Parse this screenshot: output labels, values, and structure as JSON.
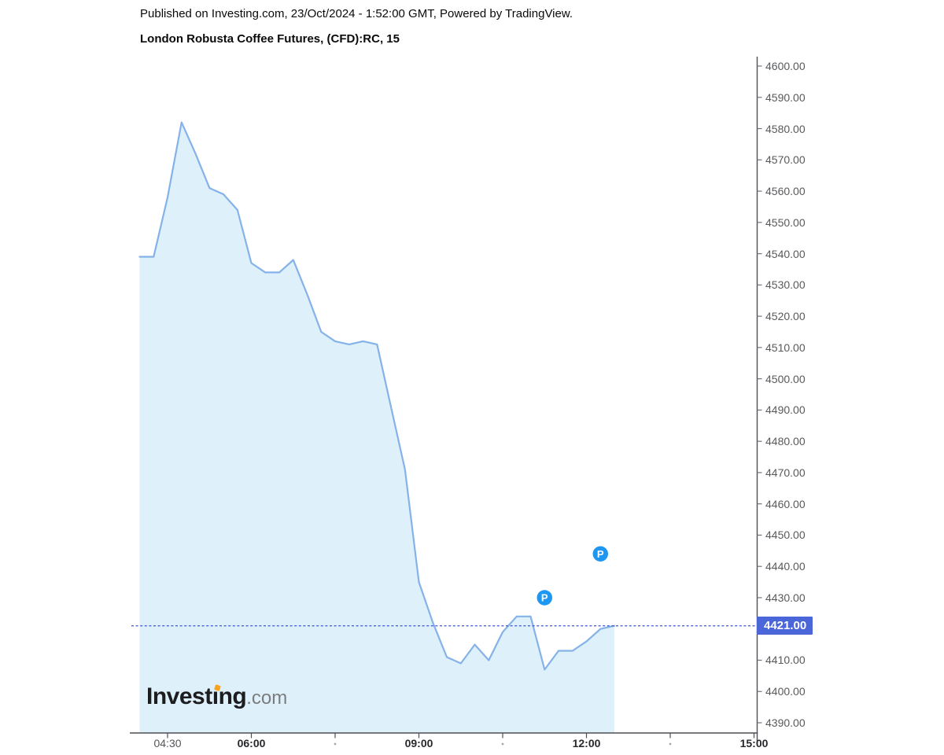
{
  "header": {
    "published_line": "Published on Investing.com, 23/Oct/2024 - 1:52:00 GMT, Powered by TradingView.",
    "title": "London Robusta Coffee Futures, (CFD):RC, 15"
  },
  "logo": {
    "prefix": "Invest",
    "dotless_i": "ı",
    "rest": "ng",
    "suffix": ".com"
  },
  "price_badge": {
    "value": "4421.00"
  },
  "colors": {
    "line": "#85b2e8",
    "area_fill": "#def0fa",
    "price_line": "#3d56d6",
    "badge_bg": "#4a66d8",
    "badge_text": "#ffffff",
    "marker": "#1e97f2",
    "marker_text": "#ffffff",
    "logo_dot": "#f9a21d",
    "axis": "#4c4f54",
    "tick": "#6f7276",
    "minor_dot": "#a8a8a8"
  },
  "chart_data": {
    "type": "area",
    "title": "London Robusta Coffee Futures, (CFD):RC, 15",
    "interval_minutes": 15,
    "x": [
      "04:00",
      "04:15",
      "04:30",
      "04:45",
      "05:00",
      "05:15",
      "05:30",
      "05:45",
      "06:00",
      "06:15",
      "06:30",
      "06:45",
      "07:00",
      "07:15",
      "07:30",
      "07:45",
      "08:00",
      "08:15",
      "08:30",
      "08:45",
      "09:00",
      "09:15",
      "09:30",
      "09:45",
      "10:00",
      "10:15",
      "10:30",
      "10:45",
      "11:00",
      "11:15",
      "11:30",
      "11:45",
      "12:00",
      "12:15",
      "12:30"
    ],
    "values": [
      4539,
      4539,
      4558,
      4582,
      4572,
      4561,
      4559,
      4554,
      4537,
      4534,
      4534,
      4538,
      4527,
      4515,
      4512,
      4511,
      4512,
      4511,
      4491,
      4471,
      4435,
      4422,
      4411,
      4409,
      4415,
      4410,
      4419,
      4424,
      4424,
      4407,
      4413,
      4413,
      4416,
      4420,
      4421
    ],
    "last_price": 4421,
    "ylim": [
      4390,
      4600
    ],
    "xlabel": "",
    "ylabel": "",
    "grid": false,
    "legend_position": "none",
    "y_ticks": [
      "4600.00",
      "4590.00",
      "4580.00",
      "4570.00",
      "4560.00",
      "4550.00",
      "4540.00",
      "4530.00",
      "4520.00",
      "4510.00",
      "4500.00",
      "4490.00",
      "4480.00",
      "4470.00",
      "4460.00",
      "4450.00",
      "4440.00",
      "4430.00",
      "4410.00",
      "4400.00",
      "4390.00"
    ],
    "x_major_ticks": [
      {
        "label": "04:30",
        "bold": false
      },
      {
        "label": "06:00",
        "bold": true
      },
      {
        "label": "09:00",
        "bold": true
      },
      {
        "label": "12:00",
        "bold": true
      },
      {
        "label": "15:00",
        "bold": true
      }
    ],
    "x_minor_ticks": [
      "07:30",
      "10:30",
      "13:30"
    ],
    "markers": [
      {
        "symbol": "P",
        "time": "11:15",
        "price": 4430
      },
      {
        "symbol": "P",
        "time": "12:15",
        "price": 4444
      }
    ]
  }
}
